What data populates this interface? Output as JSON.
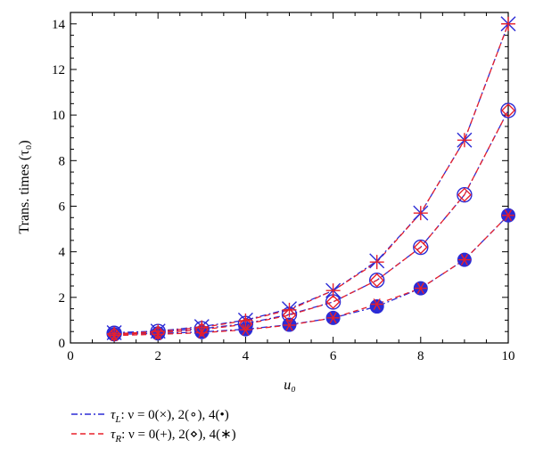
{
  "chart_data": {
    "type": "line",
    "xlabel": "u₀",
    "ylabel": "Trans. times (τ₀)",
    "xlim": [
      0,
      10
    ],
    "ylim": [
      0,
      14.5
    ],
    "xticks": [
      0,
      2,
      4,
      6,
      8,
      10
    ],
    "yticks": [
      0,
      2,
      4,
      6,
      8,
      10,
      12,
      14
    ],
    "grid": false,
    "legend_position": "bottom-left-outside",
    "x": [
      1,
      2,
      3,
      4,
      5,
      6,
      7,
      8,
      9,
      10
    ],
    "series": [
      {
        "name": "τL, ν = 0",
        "group": "L",
        "nu": 0,
        "marker": "x",
        "color": "#2b2bd6",
        "values": [
          0.45,
          0.52,
          0.72,
          1.0,
          1.5,
          2.3,
          3.6,
          5.7,
          8.9,
          14.0
        ]
      },
      {
        "name": "τL, ν = 2",
        "group": "L",
        "nu": 2,
        "marker": "circle-open",
        "color": "#2b2bd6",
        "values": [
          0.42,
          0.5,
          0.62,
          0.85,
          1.25,
          1.8,
          2.75,
          4.2,
          6.5,
          10.2
        ]
      },
      {
        "name": "τL, ν = 4",
        "group": "L",
        "nu": 4,
        "marker": "circle-filled",
        "color": "#2b2bd6",
        "values": [
          0.38,
          0.42,
          0.48,
          0.6,
          0.8,
          1.1,
          1.6,
          2.4,
          3.65,
          5.6
        ]
      },
      {
        "name": "τR, ν = 0",
        "group": "R",
        "nu": 0,
        "marker": "plus",
        "color": "#e8202a",
        "values": [
          0.4,
          0.5,
          0.68,
          0.98,
          1.45,
          2.3,
          3.55,
          5.7,
          8.9,
          14.0
        ]
      },
      {
        "name": "τR, ν = 2",
        "group": "R",
        "nu": 2,
        "marker": "diamond-open",
        "color": "#e8202a",
        "values": [
          0.37,
          0.45,
          0.58,
          0.82,
          1.22,
          1.8,
          2.75,
          4.2,
          6.5,
          10.2
        ]
      },
      {
        "name": "τR, ν = 4",
        "group": "R",
        "nu": 4,
        "marker": "asterisk",
        "color": "#e8202a",
        "values": [
          0.33,
          0.38,
          0.45,
          0.58,
          0.78,
          1.1,
          1.7,
          2.4,
          3.65,
          5.6
        ]
      }
    ],
    "legend": [
      {
        "group": "L",
        "line_style": "dash-dot",
        "color": "#2b2bd6",
        "tau": "τ",
        "sub": "L",
        "rest": ": ν = 0(×), 2(∘), 4(•)"
      },
      {
        "group": "R",
        "line_style": "dashed",
        "color": "#e8202a",
        "tau": "τ",
        "sub": "R",
        "rest": ": ν = 0(+), 2(⋄), 4(∗)"
      }
    ]
  }
}
